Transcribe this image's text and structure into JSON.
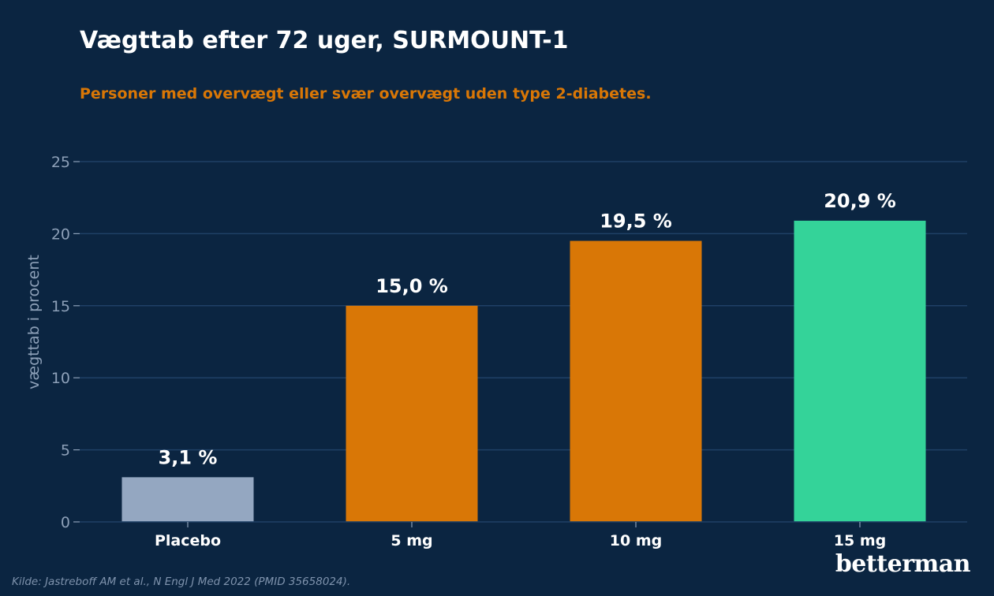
{
  "header": {
    "title": "Vægttab efter 72 uger, SURMOUNT-1",
    "subtitle": "Personer med overvægt eller svær overvægt uden type 2-diabetes."
  },
  "footer": {
    "source": "Kilde: Jastreboff AM et al., N Engl J Med 2022 (PMID 35658024).",
    "brand": "betterman"
  },
  "chart_data": {
    "type": "bar",
    "title": "Vægttab efter 72 uger, SURMOUNT-1",
    "subtitle": "Personer med overvægt eller svær overvægt uden type 2-diabetes.",
    "xlabel": "",
    "ylabel": "vægttab i procent",
    "categories": [
      "Placebo",
      "5 mg",
      "10 mg",
      "15 mg"
    ],
    "values": [
      3.1,
      15.0,
      19.5,
      20.9
    ],
    "data_labels": [
      "3,1 %",
      "15,0 %",
      "19,5 %",
      "20,9 %"
    ],
    "bar_colors": [
      "#94a7c1",
      "#d97706",
      "#d97706",
      "#34d399"
    ],
    "ylim": [
      0,
      25
    ],
    "yticks": [
      0,
      5,
      10,
      15,
      20,
      25
    ],
    "grid": true,
    "legend": "none",
    "colors": {
      "background": "#0b2541",
      "grid": "#1f4066",
      "tick_text": "#8da0b8",
      "label_text": "#ffffff"
    }
  }
}
